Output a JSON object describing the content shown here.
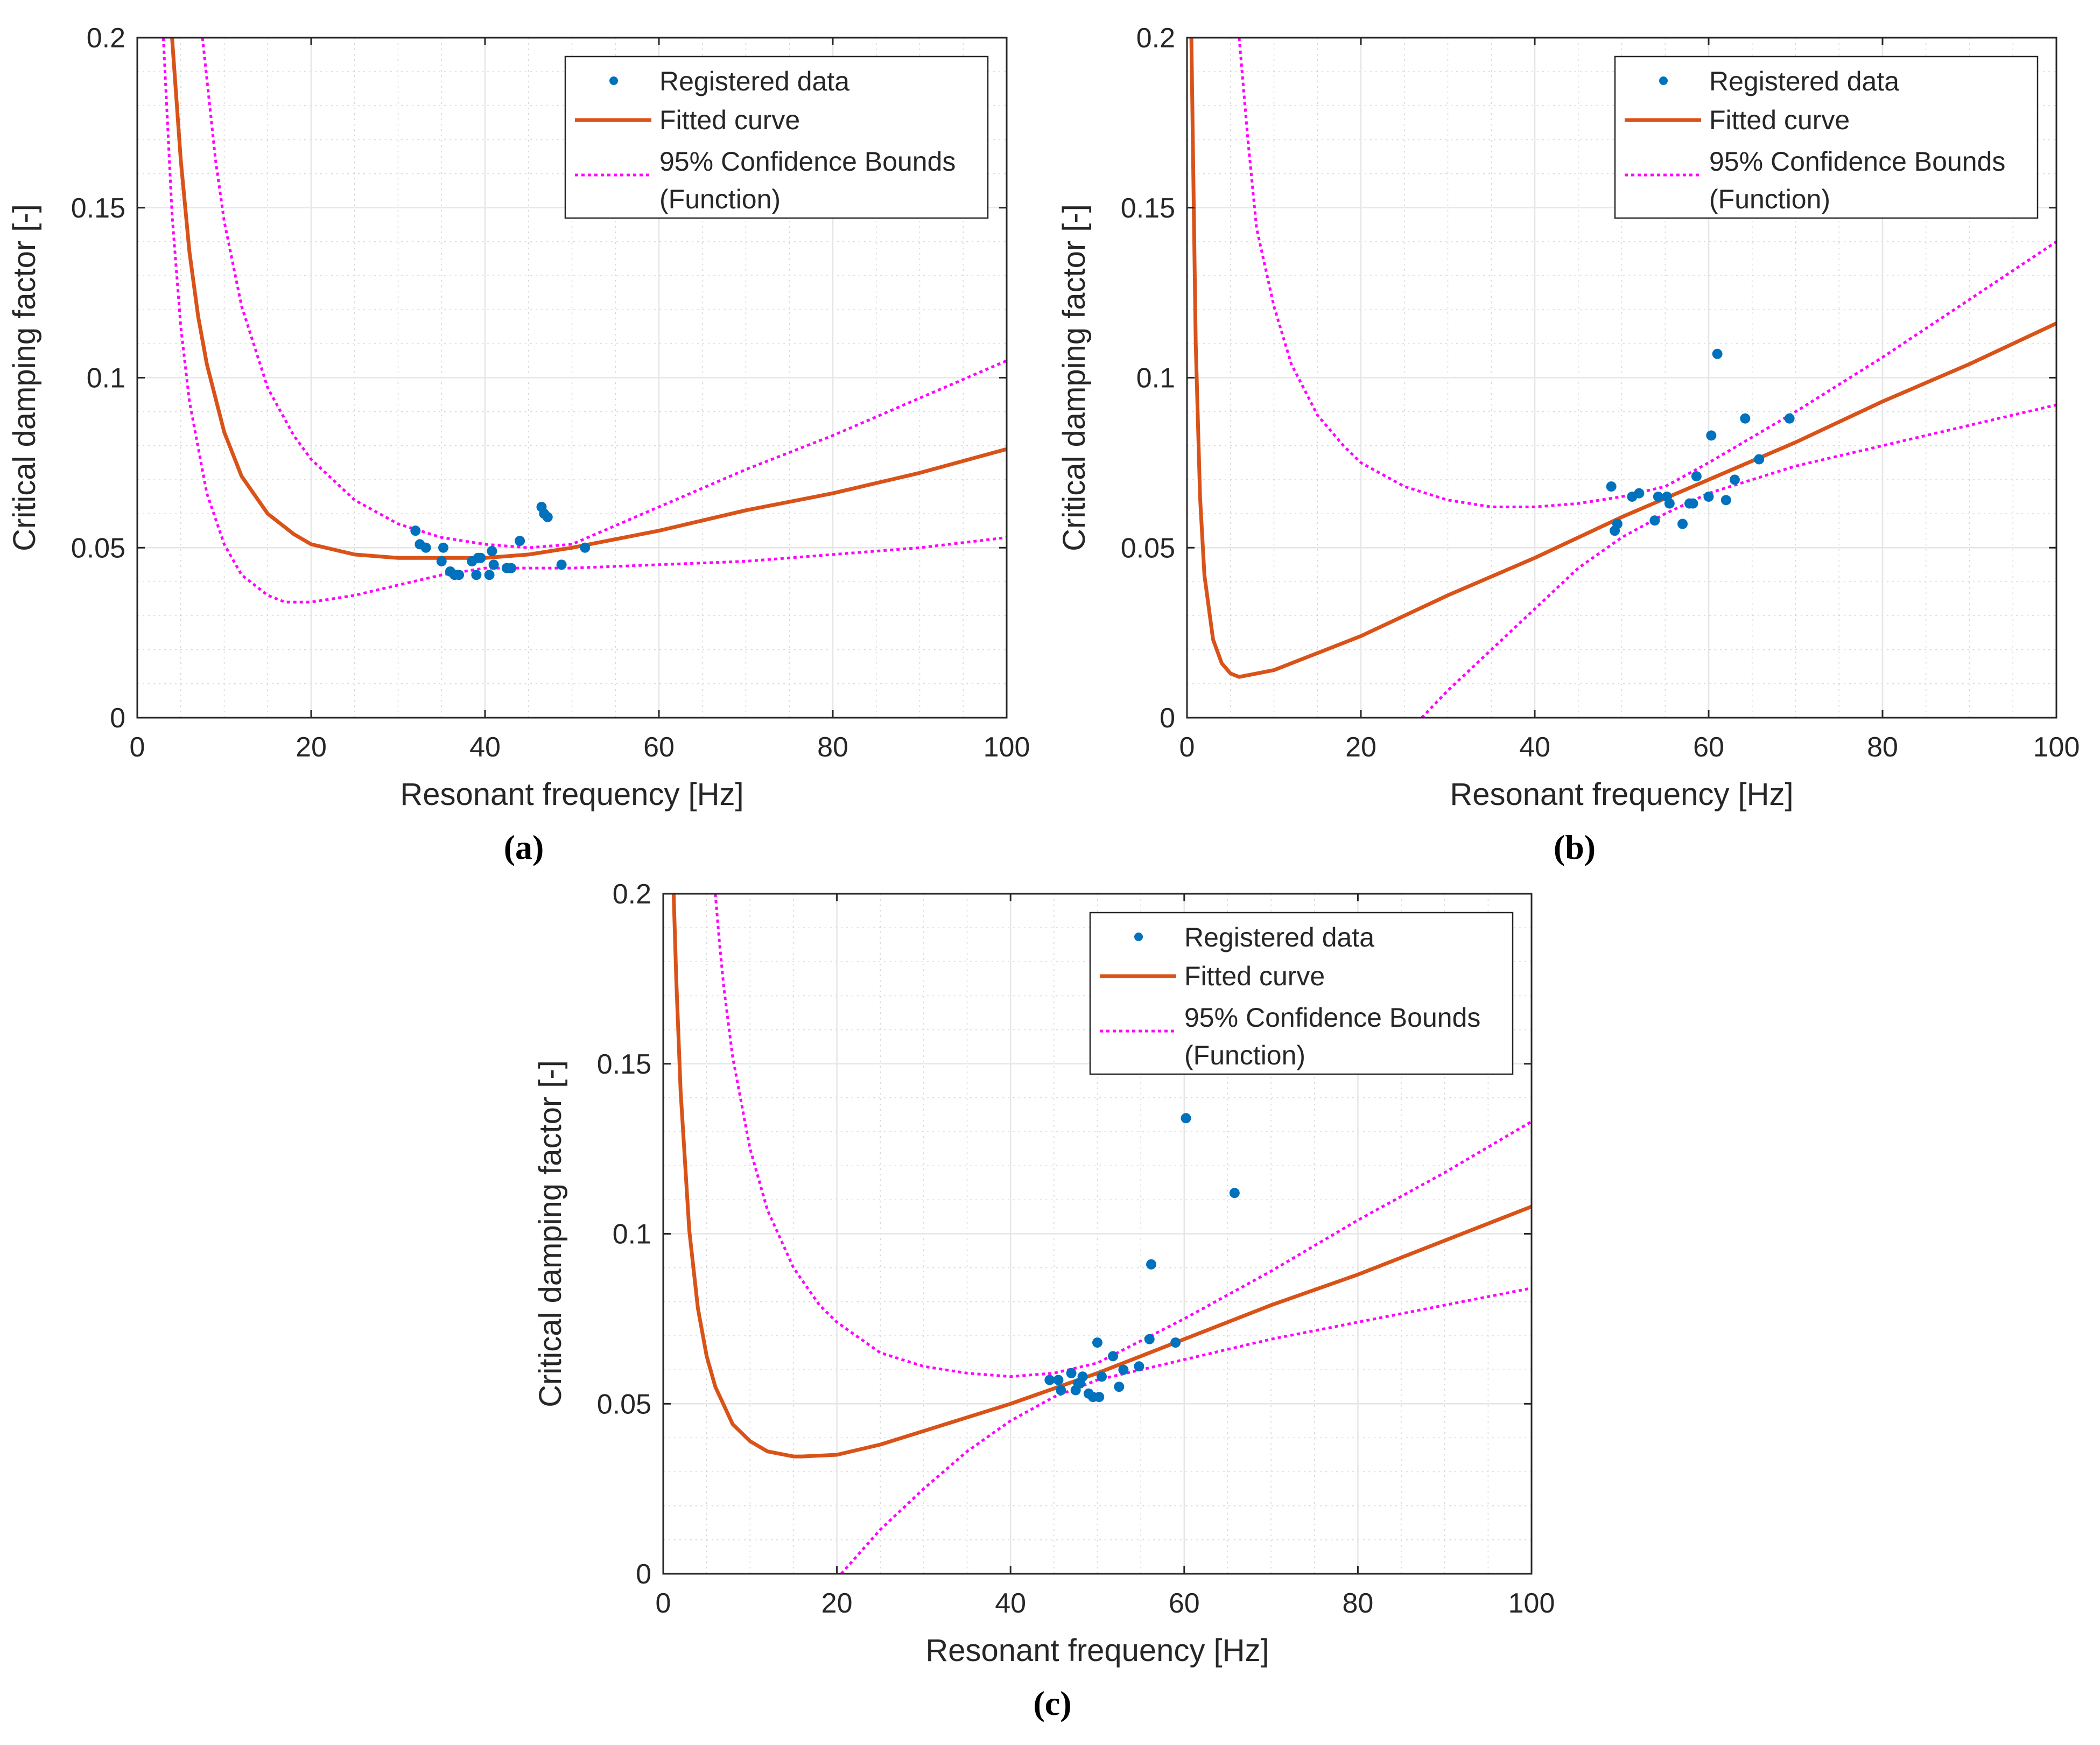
{
  "figure": {
    "panel_labels": [
      "(a)",
      "(b)",
      "(c)"
    ]
  },
  "colors": {
    "data": "#0072BD",
    "fit": "#D95319",
    "bounds": "#FF00FF",
    "grid": "#E6E6E6",
    "minor_grid": "#D6D6D6",
    "axis": "#262626"
  },
  "chart_data": [
    {
      "type": "scatter",
      "label": "(a)",
      "xlabel": "Resonant frequency [Hz]",
      "ylabel": "Critical damping factor [-]",
      "xlim": [
        0,
        100
      ],
      "ylim": [
        0,
        0.2
      ],
      "xticks": [
        0,
        20,
        40,
        60,
        80,
        100
      ],
      "yticks": [
        0,
        0.05,
        0.1,
        0.15,
        0.2
      ],
      "ytick_labels": [
        "0",
        "0.05",
        "0.1",
        "0.15",
        "0.2"
      ],
      "grid": true,
      "minor_grid": true,
      "legend": {
        "position": "top-right",
        "entries": [
          "Registered data",
          "Fitted curve",
          "95% Confidence Bounds",
          "(Function)"
        ]
      },
      "series": [
        {
          "name": "Registered data",
          "kind": "points",
          "x": [
            32,
            32.5,
            33.2,
            35,
            35.2,
            36,
            36.5,
            37,
            38.5,
            39,
            39.2,
            39.5,
            40.5,
            40.8,
            41,
            42.5,
            43,
            44,
            46.5,
            46.8,
            47.2,
            48.8,
            51.5
          ],
          "y": [
            0.055,
            0.051,
            0.05,
            0.046,
            0.05,
            0.043,
            0.042,
            0.042,
            0.046,
            0.042,
            0.047,
            0.047,
            0.042,
            0.049,
            0.045,
            0.044,
            0.044,
            0.052,
            0.062,
            0.06,
            0.059,
            0.045,
            0.05
          ]
        },
        {
          "name": "Fitted curve",
          "kind": "line",
          "x": [
            4,
            5,
            6,
            7,
            8,
            10,
            12,
            15,
            18,
            20,
            25,
            30,
            35,
            40,
            45,
            50,
            60,
            70,
            80,
            90,
            100
          ],
          "y": [
            0.2,
            0.164,
            0.137,
            0.118,
            0.104,
            0.084,
            0.071,
            0.06,
            0.054,
            0.051,
            0.048,
            0.047,
            0.047,
            0.047,
            0.048,
            0.05,
            0.055,
            0.061,
            0.066,
            0.072,
            0.079
          ]
        },
        {
          "name": "95% Confidence Bounds (upper)",
          "kind": "dotted",
          "x": [
            7.5,
            8,
            9,
            10,
            12,
            15,
            18,
            20,
            25,
            30,
            35,
            40,
            45,
            50,
            60,
            70,
            80,
            90,
            100
          ],
          "y": [
            0.2,
            0.188,
            0.164,
            0.146,
            0.121,
            0.097,
            0.083,
            0.076,
            0.064,
            0.057,
            0.053,
            0.051,
            0.05,
            0.051,
            0.062,
            0.073,
            0.083,
            0.094,
            0.105
          ]
        },
        {
          "name": "95% Confidence Bounds (lower)",
          "kind": "dotted",
          "x": [
            3,
            4,
            5,
            6,
            8,
            10,
            12,
            15,
            17,
            20,
            25,
            30,
            35,
            40,
            50,
            60,
            70,
            80,
            90,
            100
          ],
          "y": [
            0.2,
            0.148,
            0.115,
            0.093,
            0.066,
            0.051,
            0.042,
            0.036,
            0.034,
            0.034,
            0.036,
            0.039,
            0.042,
            0.044,
            0.044,
            0.045,
            0.046,
            0.048,
            0.05,
            0.053
          ]
        }
      ]
    },
    {
      "type": "scatter",
      "label": "(b)",
      "xlabel": "Resonant frequency [Hz]",
      "ylabel": "Critical damping factor [-]",
      "xlim": [
        0,
        100
      ],
      "ylim": [
        0,
        0.2
      ],
      "xticks": [
        0,
        20,
        40,
        60,
        80,
        100
      ],
      "yticks": [
        0,
        0.05,
        0.1,
        0.15,
        0.2
      ],
      "ytick_labels": [
        "0",
        "0.05",
        "0.1",
        "0.15",
        "0.2"
      ],
      "grid": true,
      "minor_grid": true,
      "legend": {
        "position": "top-right",
        "entries": [
          "Registered data",
          "Fitted curve",
          "95% Confidence Bounds",
          "(Function)"
        ]
      },
      "series": [
        {
          "name": "Registered data",
          "kind": "points",
          "x": [
            48.8,
            49.2,
            49.5,
            51.2,
            52,
            53.8,
            54.2,
            55.2,
            55.5,
            57,
            57.8,
            58.2,
            58.6,
            60,
            60.3,
            61,
            62,
            63,
            64.2,
            65.8,
            69.3
          ],
          "y": [
            0.068,
            0.055,
            0.057,
            0.065,
            0.066,
            0.058,
            0.065,
            0.065,
            0.063,
            0.057,
            0.063,
            0.063,
            0.071,
            0.065,
            0.083,
            0.107,
            0.064,
            0.07,
            0.088,
            0.076,
            0.088
          ]
        },
        {
          "name": "Fitted curve",
          "kind": "line",
          "x": [
            0.5,
            1,
            1.5,
            2,
            3,
            4,
            5,
            6,
            8,
            10,
            15,
            20,
            30,
            40,
            50,
            60,
            70,
            80,
            90,
            100
          ],
          "y": [
            0.2,
            0.11,
            0.065,
            0.042,
            0.023,
            0.016,
            0.013,
            0.012,
            0.013,
            0.014,
            0.019,
            0.024,
            0.036,
            0.047,
            0.059,
            0.07,
            0.081,
            0.093,
            0.104,
            0.116
          ]
        },
        {
          "name": "95% Confidence Bounds (upper)",
          "kind": "dotted",
          "x": [
            6,
            7,
            8,
            10,
            12,
            15,
            18,
            20,
            25,
            30,
            35,
            40,
            45,
            50,
            55,
            60,
            70,
            80,
            90,
            100
          ],
          "y": [
            0.2,
            0.17,
            0.144,
            0.121,
            0.104,
            0.089,
            0.08,
            0.075,
            0.068,
            0.064,
            0.062,
            0.062,
            0.063,
            0.065,
            0.068,
            0.075,
            0.09,
            0.106,
            0.123,
            0.14
          ]
        },
        {
          "name": "95% Confidence Bounds (lower)",
          "kind": "dotted",
          "x": [
            27,
            30,
            35,
            40,
            45,
            50,
            55,
            60,
            65,
            70,
            80,
            90,
            100
          ],
          "y": [
            0.0,
            0.008,
            0.02,
            0.032,
            0.044,
            0.053,
            0.06,
            0.066,
            0.07,
            0.074,
            0.08,
            0.086,
            0.092
          ]
        }
      ]
    },
    {
      "type": "scatter",
      "label": "(c)",
      "xlabel": "Resonant frequency [Hz]",
      "ylabel": "Critical damping factor [-]",
      "xlim": [
        0,
        100
      ],
      "ylim": [
        0,
        0.2
      ],
      "xticks": [
        0,
        20,
        40,
        60,
        80,
        100
      ],
      "yticks": [
        0,
        0.05,
        0.1,
        0.15,
        0.2
      ],
      "ytick_labels": [
        "0",
        "0.05",
        "0.1",
        "0.15",
        "0.2"
      ],
      "grid": true,
      "minor_grid": true,
      "legend": {
        "position": "top-right",
        "entries": [
          "Registered data",
          "Fitted curve",
          "95% Confidence Bounds",
          "(Function)"
        ]
      },
      "series": [
        {
          "name": "Registered data",
          "kind": "points",
          "x": [
            44.5,
            45.5,
            45.8,
            47,
            47.5,
            47.8,
            48,
            48.3,
            49,
            49.5,
            50,
            50.2,
            50.5,
            51.8,
            52.5,
            53,
            54.8,
            56,
            56.2,
            59,
            60.2,
            65.8
          ],
          "y": [
            0.057,
            0.057,
            0.054,
            0.059,
            0.054,
            0.056,
            0.056,
            0.058,
            0.053,
            0.052,
            0.068,
            0.052,
            0.058,
            0.064,
            0.055,
            0.06,
            0.061,
            0.069,
            0.091,
            0.068,
            0.134,
            0.112
          ]
        },
        {
          "name": "Fitted curve",
          "kind": "line",
          "x": [
            1.2,
            1.5,
            2,
            3,
            4,
            5,
            6,
            8,
            10,
            12,
            15,
            16,
            20,
            25,
            30,
            40,
            50,
            60,
            70,
            80,
            90,
            100
          ],
          "y": [
            0.2,
            0.175,
            0.142,
            0.101,
            0.078,
            0.064,
            0.055,
            0.044,
            0.039,
            0.036,
            0.0345,
            0.0345,
            0.035,
            0.038,
            0.042,
            0.05,
            0.059,
            0.069,
            0.079,
            0.088,
            0.098,
            0.108
          ]
        },
        {
          "name": "95% Confidence Bounds (upper)",
          "kind": "dotted",
          "x": [
            6,
            6.5,
            7,
            8,
            10,
            12,
            15,
            18,
            20,
            25,
            30,
            35,
            40,
            45,
            50,
            60,
            70,
            80,
            90,
            100
          ],
          "y": [
            0.2,
            0.185,
            0.172,
            0.152,
            0.125,
            0.107,
            0.09,
            0.079,
            0.074,
            0.065,
            0.061,
            0.059,
            0.058,
            0.059,
            0.062,
            0.075,
            0.089,
            0.104,
            0.118,
            0.133
          ]
        },
        {
          "name": "95% Confidence Bounds (lower)",
          "kind": "dotted",
          "x": [
            20.5,
            25,
            30,
            35,
            40,
            45,
            50,
            55,
            60,
            70,
            80,
            90,
            100
          ],
          "y": [
            0.0,
            0.013,
            0.025,
            0.036,
            0.045,
            0.052,
            0.057,
            0.06,
            0.063,
            0.069,
            0.074,
            0.079,
            0.084
          ]
        }
      ]
    }
  ]
}
